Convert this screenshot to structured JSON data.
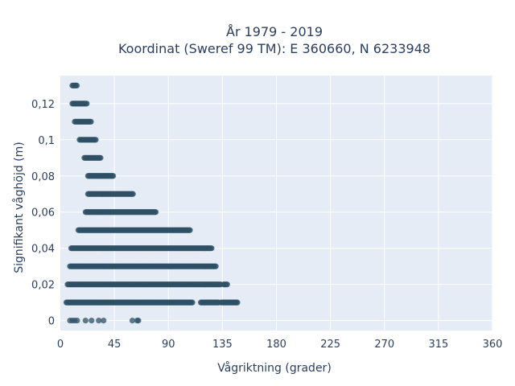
{
  "title_line1": "År 1979 - 2019",
  "title_line2": "Koordinat (Sweref 99 TM): E 360660, N 6233948",
  "chart_data": {
    "type": "scatter",
    "xlabel": "Vågriktning (grader)",
    "ylabel": "Signifikant våghöjd (m)",
    "xlim": [
      0,
      360
    ],
    "ylim": [
      -0.0055,
      0.1355
    ],
    "x_ticks": [
      0,
      45,
      90,
      135,
      180,
      225,
      270,
      315,
      360
    ],
    "x_tick_labels": [
      "0",
      "45",
      "90",
      "135",
      "180",
      "225",
      "270",
      "315",
      "360"
    ],
    "y_ticks": [
      0,
      0.02,
      0.04,
      0.06,
      0.08,
      0.1,
      0.12
    ],
    "y_tick_labels": [
      "0",
      "0,02",
      "0,04",
      "0,06",
      "0,08",
      "0,1",
      "0,12"
    ],
    "grid": true,
    "marker_color": "#2f5066",
    "plot_bg": "#e5ecf6",
    "rows": [
      {
        "y": 0.13,
        "x_min": 10,
        "x_max": 14
      },
      {
        "y": 0.12,
        "x_min": 10,
        "x_max": 22
      },
      {
        "y": 0.11,
        "x_min": 12,
        "x_max": 26
      },
      {
        "y": 0.1,
        "x_min": 16,
        "x_max": 30
      },
      {
        "y": 0.09,
        "x_min": 20,
        "x_max": 34
      },
      {
        "y": 0.08,
        "x_min": 23,
        "x_max": 44
      },
      {
        "y": 0.07,
        "x_min": 23,
        "x_max": 61
      },
      {
        "y": 0.06,
        "x_min": 21,
        "x_max": 80
      },
      {
        "y": 0.05,
        "x_min": 15,
        "x_max": 108
      },
      {
        "y": 0.04,
        "x_min": 9,
        "x_max": 126
      },
      {
        "y": 0.03,
        "x_min": 8,
        "x_max": 130
      },
      {
        "y": 0.02,
        "x_min": 6,
        "x_max": 134
      },
      {
        "y": 0.02,
        "x_min": 136,
        "x_max": 139
      },
      {
        "y": 0.01,
        "x_min": 5,
        "x_max": 110
      },
      {
        "y": 0.01,
        "x_min": 117,
        "x_max": 132
      },
      {
        "y": 0.01,
        "x_min": 134,
        "x_max": 148
      }
    ],
    "zero_points": [
      8,
      10,
      12,
      14,
      21,
      26,
      32,
      36,
      60,
      64,
      65
    ]
  }
}
